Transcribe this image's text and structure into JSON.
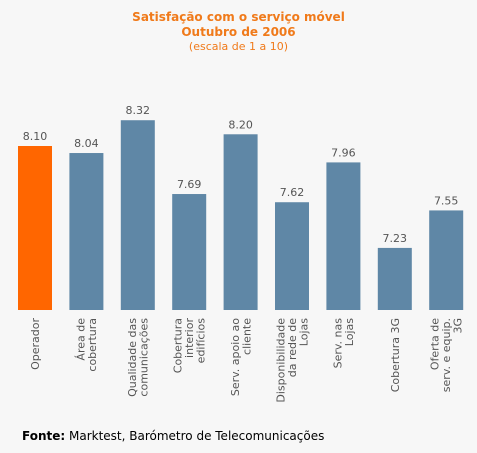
{
  "chart_data": {
    "type": "bar",
    "title": "Satisfação com o serviço móvel",
    "subtitle_line2": "Outubro de 2006",
    "subtitle_line3": "(escala de 1 a 10)",
    "categories": [
      [
        "Operador"
      ],
      [
        "Área de",
        "cobertura"
      ],
      [
        "Qualidade das",
        "comunicações"
      ],
      [
        "Cobertura",
        "interior",
        "edifícios"
      ],
      [
        "Serv. apoio ao",
        "cliente"
      ],
      [
        "Disponibilidade",
        "da rede de",
        "Lojas"
      ],
      [
        "Serv. nas",
        "Lojas"
      ],
      [
        "Cobertura 3G"
      ],
      [
        "Oferta de",
        "serv. e equip.",
        "3G"
      ]
    ],
    "values": [
      8.1,
      8.04,
      8.32,
      7.69,
      8.2,
      7.62,
      7.96,
      7.23,
      7.55
    ],
    "value_labels": [
      "8.10",
      "8.04",
      "8.32",
      "7.69",
      "8.20",
      "7.62",
      "7.96",
      "7.23",
      "7.55"
    ],
    "ylim": [
      6.7,
      8.45
    ],
    "colors": {
      "highlight": "#ff6600",
      "default": "#5f87a6",
      "text": "#555555",
      "title": "#f07a1a"
    },
    "highlight_index": 0,
    "grid": false,
    "legend": "none"
  },
  "footer": {
    "source_label": "Fonte:",
    "source_text": " Marktest, Barómetro de Telecomunicações"
  }
}
